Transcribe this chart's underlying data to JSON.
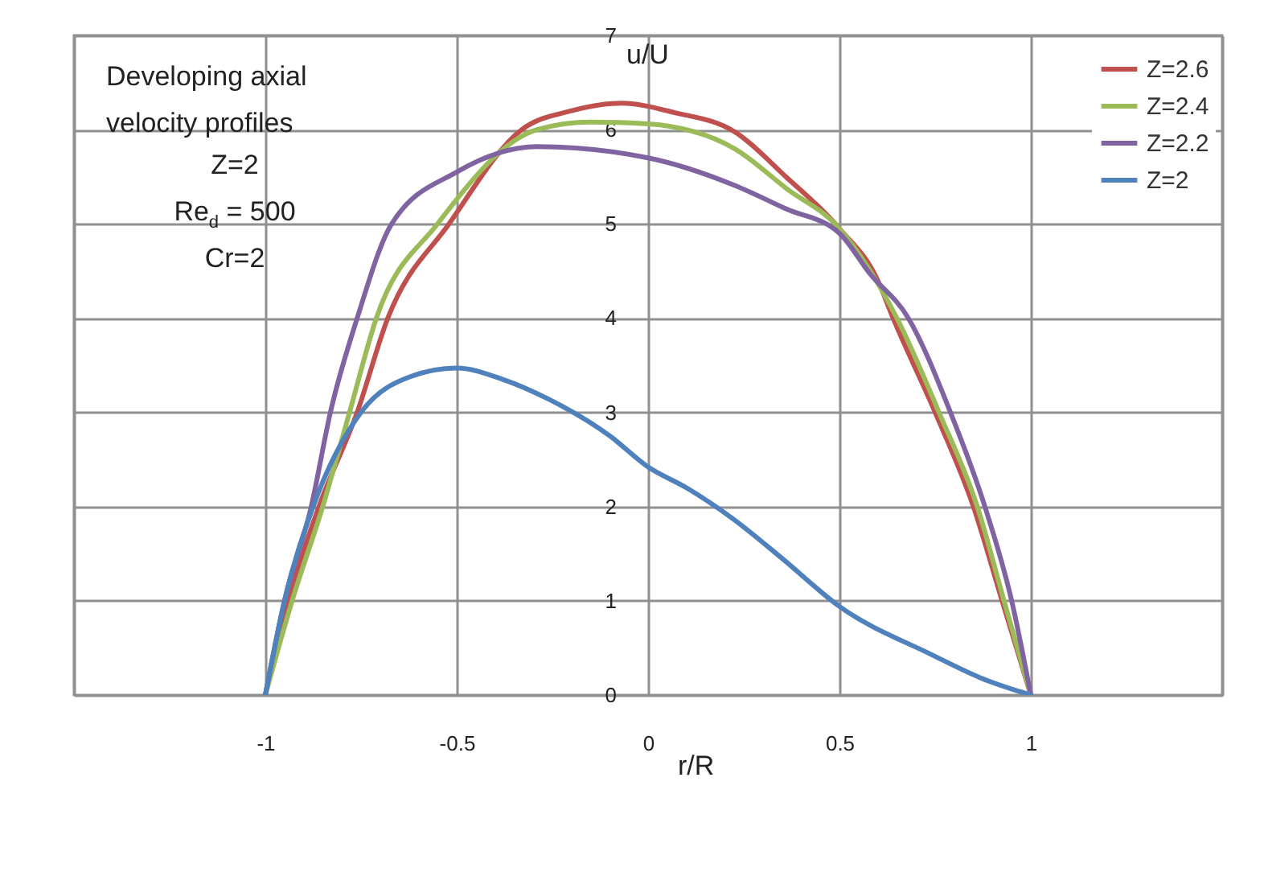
{
  "chart_data": {
    "type": "line",
    "xlabel": "r/R",
    "ylabel": "u/U",
    "xlim": [
      -1.5,
      1.5
    ],
    "xticks": [
      {
        "value": -1.5,
        "label": null
      },
      -1,
      -0.5,
      0,
      0.5,
      1,
      {
        "value": 1.5,
        "label": null
      }
    ],
    "ylim": [
      0,
      7
    ],
    "yticks": [
      0,
      1,
      2,
      3,
      4,
      5,
      6,
      7
    ],
    "grid": true,
    "legend": "top right",
    "marker": "none",
    "line_style": "solid",
    "annotations": [
      "Developing axial velocity profiles",
      "Z=2",
      "Re$_{d}$ = 500",
      "Cr=2"
    ],
    "series": [
      {
        "name": "Z=2.6",
        "color": "#c0504d",
        "x": [
          -1,
          -0.94,
          -0.86,
          -0.76,
          -0.68,
          -0.52,
          -0.33,
          -0.2,
          -0.07,
          0.07,
          0.225,
          0.36,
          0.5,
          0.6,
          0.64,
          0.75,
          0.85,
          0.925,
          1
        ],
        "values": [
          0,
          1,
          2,
          3,
          4,
          5,
          6,
          6.2,
          6.28,
          6.18,
          5.98,
          5.5,
          4.95,
          4.4,
          4,
          3,
          2,
          1,
          0
        ]
      },
      {
        "name": "Z=2.4",
        "color": "#9bbb59",
        "x": [
          -1,
          -0.93,
          -0.85,
          -0.78,
          -0.71,
          -0.55,
          -0.29,
          -0.15,
          0,
          0.225,
          0.36,
          0.5,
          0.65,
          0.76,
          0.86,
          0.93,
          1
        ],
        "values": [
          0,
          1,
          2,
          3,
          4,
          5,
          6,
          6.08,
          6.06,
          5.8,
          5.38,
          4.95,
          4,
          3,
          2,
          1,
          0
        ]
      },
      {
        "name": "Z=2.2",
        "color": "#8064a2",
        "x": [
          -1,
          -0.95,
          -0.88,
          -0.83,
          -0.76,
          -0.67,
          -0.5,
          -0.29,
          0,
          0.225,
          0.36,
          0.5,
          0.58,
          0.68,
          0.79,
          0.88,
          0.95,
          1
        ],
        "values": [
          0,
          1,
          2,
          3,
          4,
          5,
          5.55,
          5.82,
          5.7,
          5.41,
          5.16,
          4.9,
          4.47,
          4,
          3,
          2,
          1,
          0
        ]
      },
      {
        "name": "Z=2",
        "color": "#4f81bd",
        "x": [
          -1,
          -0.95,
          -0.875,
          -0.75,
          -0.62,
          -0.5,
          -0.38,
          -0.26,
          -0.1,
          0,
          0.1,
          0.225,
          0.35,
          0.5,
          0.74,
          0.87,
          1
        ],
        "values": [
          0,
          1,
          2,
          3,
          3.38,
          3.47,
          3.35,
          3.14,
          2.75,
          2.42,
          2.2,
          1.86,
          1.45,
          0.94,
          0.43,
          0.18,
          0
        ]
      }
    ]
  }
}
